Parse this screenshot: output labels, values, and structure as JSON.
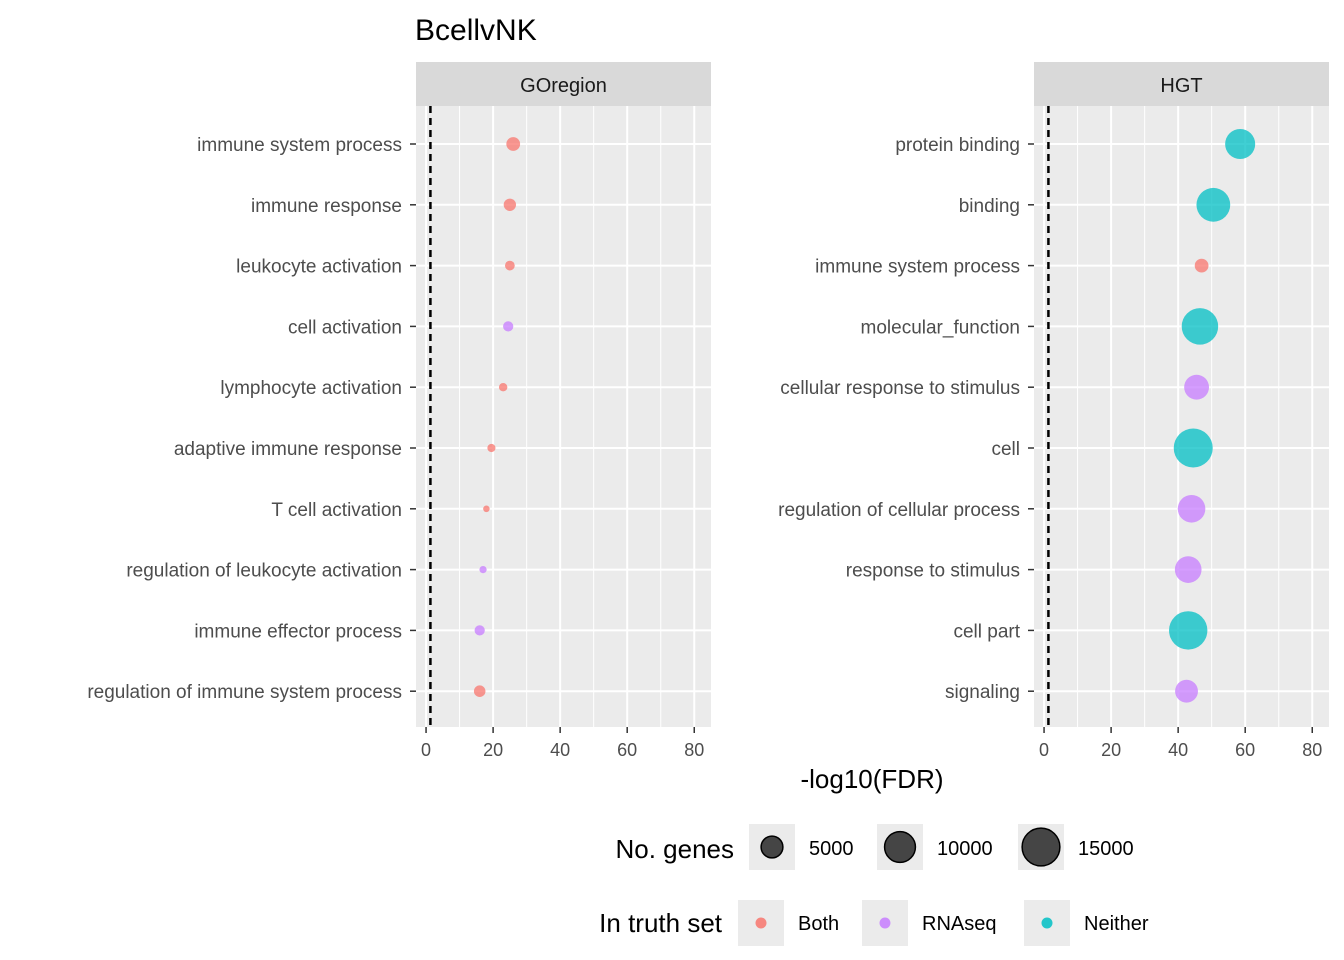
{
  "chart_data": {
    "type": "scatter",
    "title": "BcellvNK",
    "xlabel": "-log10(FDR)",
    "xlim": [
      -3,
      85
    ],
    "xticks": [
      0,
      20,
      40,
      60,
      80
    ],
    "reference_line_x": 1.3,
    "grid": true,
    "facets": [
      {
        "label": "GOregion",
        "categories": [
          "immune system process",
          "immune response",
          "leukocyte activation",
          "cell activation",
          "lymphocyte activation",
          "adaptive immune response",
          "T cell activation",
          "regulation of leukocyte activation",
          "immune effector process",
          "regulation of immune system process"
        ],
        "points": [
          {
            "category": "immune system process",
            "x": 26,
            "genes": 2000,
            "truth": "Both"
          },
          {
            "category": "immune response",
            "x": 25,
            "genes": 1600,
            "truth": "Both"
          },
          {
            "category": "leukocyte activation",
            "x": 25,
            "genes": 1000,
            "truth": "Both"
          },
          {
            "category": "cell activation",
            "x": 24.5,
            "genes": 1100,
            "truth": "RNAseq"
          },
          {
            "category": "lymphocyte activation",
            "x": 23,
            "genes": 750,
            "truth": "Both"
          },
          {
            "category": "adaptive immune response",
            "x": 19.5,
            "genes": 700,
            "truth": "Both"
          },
          {
            "category": "T cell activation",
            "x": 18,
            "genes": 450,
            "truth": "Both"
          },
          {
            "category": "regulation of leukocyte activation",
            "x": 17,
            "genes": 550,
            "truth": "RNAseq"
          },
          {
            "category": "immune effector process",
            "x": 16,
            "genes": 1100,
            "truth": "RNAseq"
          },
          {
            "category": "regulation of immune system process",
            "x": 16,
            "genes": 1400,
            "truth": "Both"
          }
        ]
      },
      {
        "label": "HGT",
        "categories": [
          "protein binding",
          "binding",
          "immune system process",
          "molecular_function",
          "cellular response to stimulus",
          "cell",
          "regulation of cellular process",
          "response to stimulus",
          "cell part",
          "signaling"
        ],
        "points": [
          {
            "category": "protein binding",
            "x": 58.5,
            "genes": 9500,
            "truth": "Neither"
          },
          {
            "category": "binding",
            "x": 50.5,
            "genes": 12000,
            "truth": "Neither"
          },
          {
            "category": "immune system process",
            "x": 47,
            "genes": 2000,
            "truth": "Both"
          },
          {
            "category": "molecular_function",
            "x": 46.5,
            "genes": 14000,
            "truth": "Neither"
          },
          {
            "category": "cellular response to stimulus",
            "x": 45.5,
            "genes": 6500,
            "truth": "RNAseq"
          },
          {
            "category": "cell",
            "x": 44.5,
            "genes": 16000,
            "truth": "Neither"
          },
          {
            "category": "regulation of cellular process",
            "x": 44,
            "genes": 8000,
            "truth": "RNAseq"
          },
          {
            "category": "response to stimulus",
            "x": 43,
            "genes": 7500,
            "truth": "RNAseq"
          },
          {
            "category": "cell part",
            "x": 43,
            "genes": 15500,
            "truth": "Neither"
          },
          {
            "category": "signaling",
            "x": 42.5,
            "genes": 5500,
            "truth": "RNAseq"
          }
        ]
      }
    ],
    "size_legend": {
      "title": "No. genes",
      "entries": [
        {
          "label": "5000",
          "value": 5000
        },
        {
          "label": "10000",
          "value": 10000
        },
        {
          "label": "15000",
          "value": 15000
        }
      ]
    },
    "color_legend": {
      "title": "In truth set",
      "entries": [
        {
          "label": "Both",
          "color": "#F8766D"
        },
        {
          "label": "RNAseq",
          "color": "#C77CFF"
        },
        {
          "label": "Neither",
          "color": "#00BFC4"
        }
      ]
    }
  }
}
